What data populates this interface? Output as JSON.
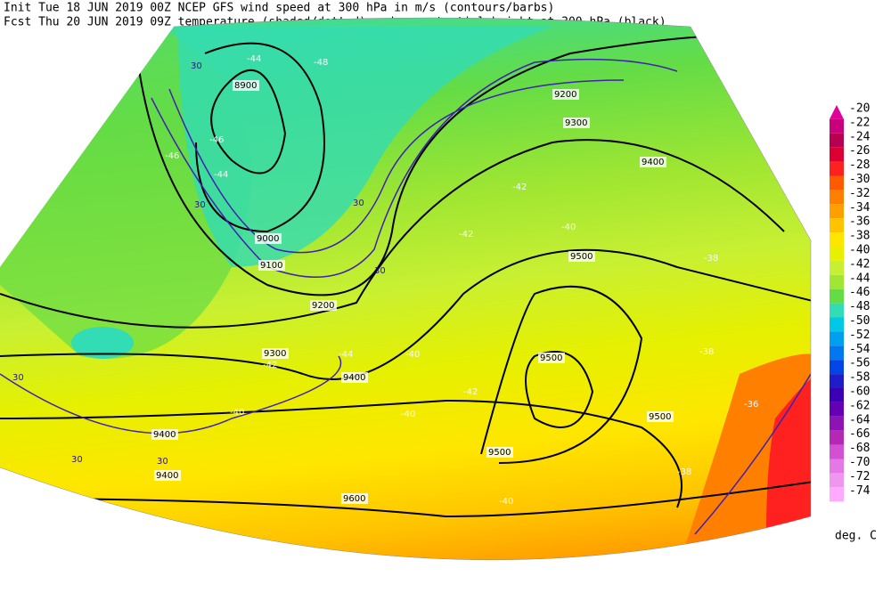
{
  "header": {
    "line1": "Init  Tue 18 JUN 2019 00Z  NCEP GFS wind speed at 300 hPa in m/s (contours/barbs)",
    "line2": "Fcst Thu 20 JUN 2019 09Z  temperature (shaded/dotted) and geopotential height at 300 hPa (black)"
  },
  "colorbar": {
    "levels": [
      -20,
      -22,
      -24,
      -26,
      -28,
      -30,
      -32,
      -34,
      -36,
      -38,
      -40,
      -42,
      -44,
      -46,
      -48,
      -50,
      -52,
      -54,
      -56,
      -58,
      -60,
      -62,
      -64,
      -66,
      -68,
      -70,
      -72,
      -74
    ],
    "colors": [
      "#e0009a",
      "#c8007a",
      "#b80050",
      "#dc0032",
      "#ff2020",
      "#ff5a00",
      "#ff7f00",
      "#ffa000",
      "#ffc400",
      "#ffe600",
      "#e6f000",
      "#c8f032",
      "#a0e632",
      "#64dc46",
      "#32dcb4",
      "#00c8e6",
      "#00a0f0",
      "#0078f0",
      "#0046e6",
      "#1e1ec8",
      "#3c00b4",
      "#6400b4",
      "#8c14b4",
      "#b428b4",
      "#d250d2",
      "#e678e6",
      "#f096f0",
      "#ffaaff"
    ],
    "unit": "deg. C"
  },
  "map": {
    "height_labels": [
      8900,
      9000,
      9100,
      9200,
      9300,
      9400,
      9500,
      9600,
      9200,
      9300,
      9400,
      9500,
      9500,
      9400,
      9500,
      9400
    ],
    "temperature_labels": [
      -44,
      -46,
      -48,
      -46,
      -44,
      -42,
      -40,
      -42,
      -40,
      -38,
      -36,
      -40,
      -42,
      -38,
      -40,
      -38,
      -44,
      -42,
      -40
    ],
    "wind_labels": [
      30,
      30,
      30,
      30,
      30,
      30,
      30,
      30
    ]
  }
}
